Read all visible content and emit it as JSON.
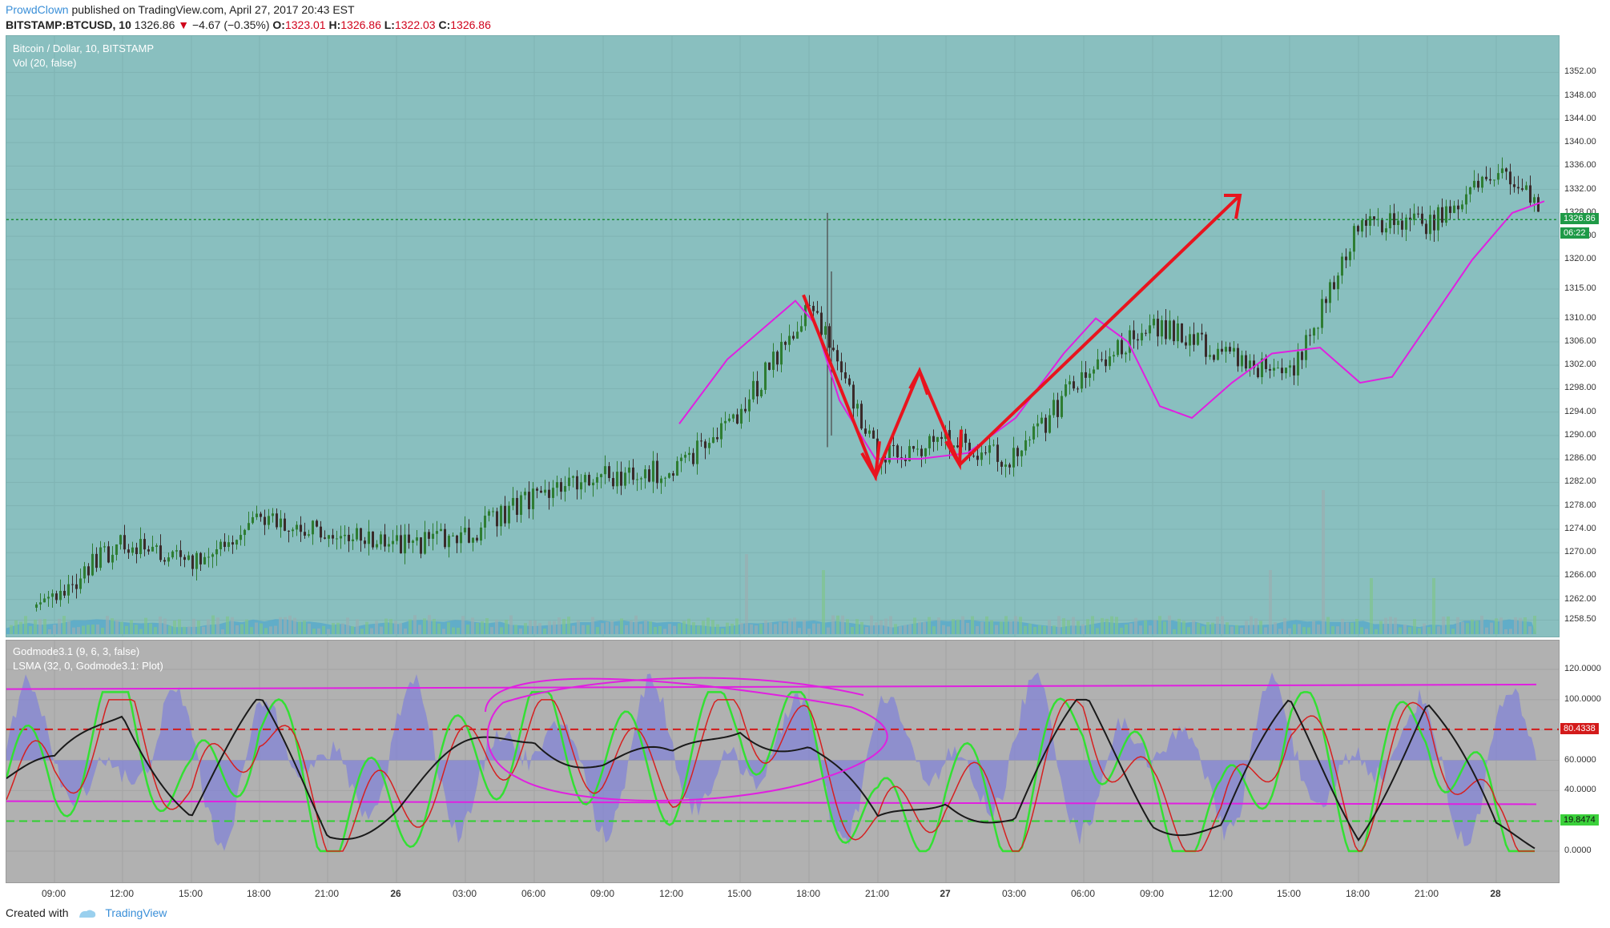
{
  "header": {
    "author": "ProwdClown",
    "published": "published on TradingView.com, April 27, 2017 20:43 EST",
    "symbol": "BITSTAMP:BTCUSD, 10",
    "last": "1326.86",
    "change_arrow": "▼",
    "change": "−4.67 (−0.35%)",
    "o_label": "O:",
    "o_value": "1323.01",
    "h_label": "H:",
    "h_value": "1326.86",
    "l_label": "L:",
    "l_value": "1322.03",
    "c_label": "C:",
    "c_value": "1326.86"
  },
  "main_pane": {
    "title": "Bitcoin / Dollar, 10, BITSTAMP",
    "volume_label": "Vol (20, false)",
    "price_axis": [
      "1352.00",
      "1348.00",
      "1344.00",
      "1340.00",
      "1336.00",
      "1332.00",
      "1328.00",
      "1324.00",
      "1320.00",
      "1315.00",
      "1310.00",
      "1306.00",
      "1302.00",
      "1298.00",
      "1294.00",
      "1290.00",
      "1286.00",
      "1282.00",
      "1278.00",
      "1274.00",
      "1270.00",
      "1266.00",
      "1262.00",
      "1258.50"
    ],
    "price_tag": "1326.86",
    "countdown_tag": "06:22"
  },
  "indicator_pane": {
    "label_1": "Godmode3.1 (9, 6, 3, false)",
    "label_2": "LSMA (32, 0, Godmode3.1: Plot)",
    "axis": [
      "120.0000",
      "100.0000",
      "80.0000",
      "60.0000",
      "40.0000",
      "20.0000",
      "0.0000"
    ],
    "upper_tag": "80.4338",
    "lower_tag": "19.8474"
  },
  "x_axis": [
    "09:00",
    "12:00",
    "15:00",
    "18:00",
    "21:00",
    "26",
    "03:00",
    "06:00",
    "09:00",
    "12:00",
    "15:00",
    "18:00",
    "21:00",
    "27",
    "03:00",
    "06:00",
    "09:00",
    "12:00",
    "15:00",
    "18:00",
    "21:00",
    "28"
  ],
  "footer": {
    "created_with": "Created with",
    "brand": "TradingView"
  },
  "colors": {
    "main_bg": "#89bfbf",
    "indicator_bg": "#b1b1b1",
    "annotation": "#e8141e",
    "ma": "#e020e0",
    "up_candle": "#2e7d32",
    "down_candle": "#3a2a2a",
    "price_tag": "#1f9a47",
    "upper_tag": "#d31b1b",
    "lower_tag": "#3bd13b"
  },
  "chart_data": [
    {
      "type": "line",
      "title": "Bitcoin / Dollar, 10, BITSTAMP",
      "xlabel": "",
      "ylabel": "",
      "ylim": [
        1256,
        1355
      ],
      "x": [
        "09:00",
        "12:00",
        "15:00",
        "18:00",
        "21:00",
        "26",
        "03:00",
        "06:00",
        "09:00",
        "12:00",
        "15:00",
        "18:00",
        "21:00",
        "27",
        "03:00",
        "06:00",
        "09:00",
        "12:00",
        "15:00",
        "18:00",
        "21:00",
        "28"
      ],
      "series": [
        {
          "name": "",
          "values": [
            1263,
            1272,
            1268,
            1276,
            1273,
            1271,
            1273,
            1280,
            1283,
            1284,
            1294,
            1313,
            1286,
            1289,
            1286,
            1301,
            1309,
            1304,
            1300,
            1326,
            1326,
            1336
          ]
        }
      ]
    },
    {
      "type": "line",
      "title": "Godmode3.1 (9, 6, 3, false)",
      "xlabel": "",
      "ylabel": "",
      "ylim": [
        -20,
        124
      ],
      "x": [
        "09:00",
        "12:00",
        "15:00",
        "18:00",
        "21:00",
        "26",
        "03:00",
        "06:00",
        "09:00",
        "12:00",
        "15:00",
        "18:00",
        "21:00",
        "27",
        "03:00",
        "06:00",
        "09:00",
        "12:00",
        "15:00",
        "18:00",
        "21:00",
        "28"
      ],
      "series": [
        {
          "name": "",
          "values": [
            48,
            96,
            30,
            88,
            18,
            32,
            58,
            82,
            60,
            52,
            90,
            70,
            10,
            44,
            20,
            94,
            30,
            14,
            90,
            22,
            92,
            10
          ]
        }
      ]
    }
  ]
}
